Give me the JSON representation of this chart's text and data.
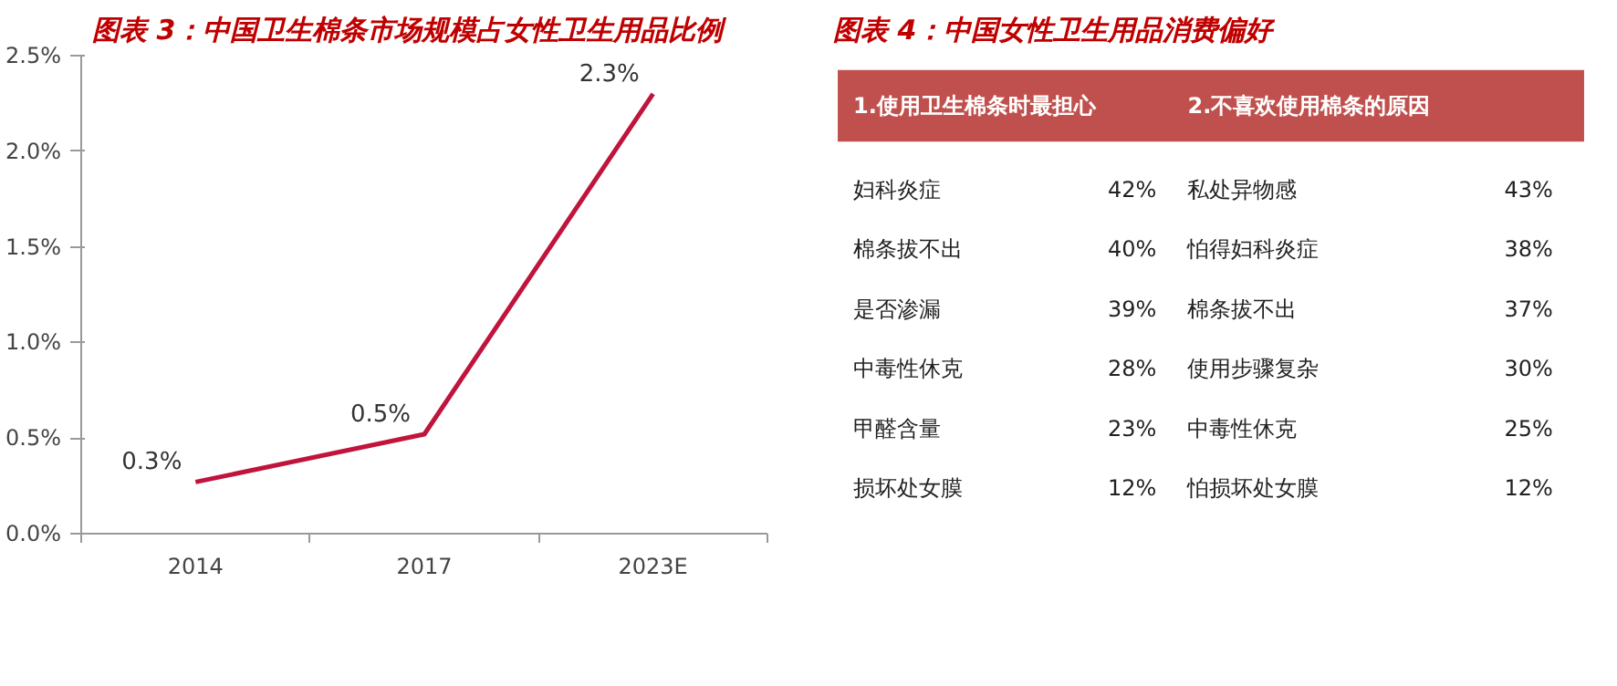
{
  "chart_data": [
    {
      "type": "line",
      "title": "图表 3：中国卫生棉条市场规模占女性卫生用品比例",
      "categories": [
        "2014",
        "2017",
        "2023E"
      ],
      "series": [
        {
          "color": "#c0143c",
          "values": [
            0.27,
            0.52,
            2.3
          ],
          "value_labels": [
            "0.3%",
            "0.5%",
            "2.3%"
          ]
        }
      ],
      "ylim": [
        0,
        2.5
      ],
      "yticks": [
        {
          "value": 0,
          "label": "0.0%"
        },
        {
          "value": 0.5,
          "label": "0.5%"
        },
        {
          "value": 1,
          "label": "1.0%"
        },
        {
          "value": 1.5,
          "label": "1.5%"
        },
        {
          "value": 2,
          "label": "2.0%"
        },
        {
          "value": 2.5,
          "label": "2.5%"
        }
      ],
      "grid": false,
      "marker": "none",
      "line_style": "solid"
    },
    {
      "type": "other",
      "title": "图表 4：中国女性卫生用品消费偏好",
      "annotations": [
        "1.使用卫生棉条时最担心",
        "2.不喜欢使用棉条的原因",
        "妇科炎症",
        "42%",
        "私处异物感",
        "43%",
        "棉条拔不出",
        "40%",
        "怕得妇科炎症",
        "38%",
        "是否渗漏",
        "39%",
        "棉条拔不出",
        "37%",
        "中毒性休克",
        "28%",
        "使用步骤复杂",
        "30%",
        "甲醛含量",
        "23%",
        "中毒性休克",
        "25%",
        "损坏处女膜",
        "12%",
        "怕损坏处女膜",
        "12%"
      ]
    }
  ]
}
